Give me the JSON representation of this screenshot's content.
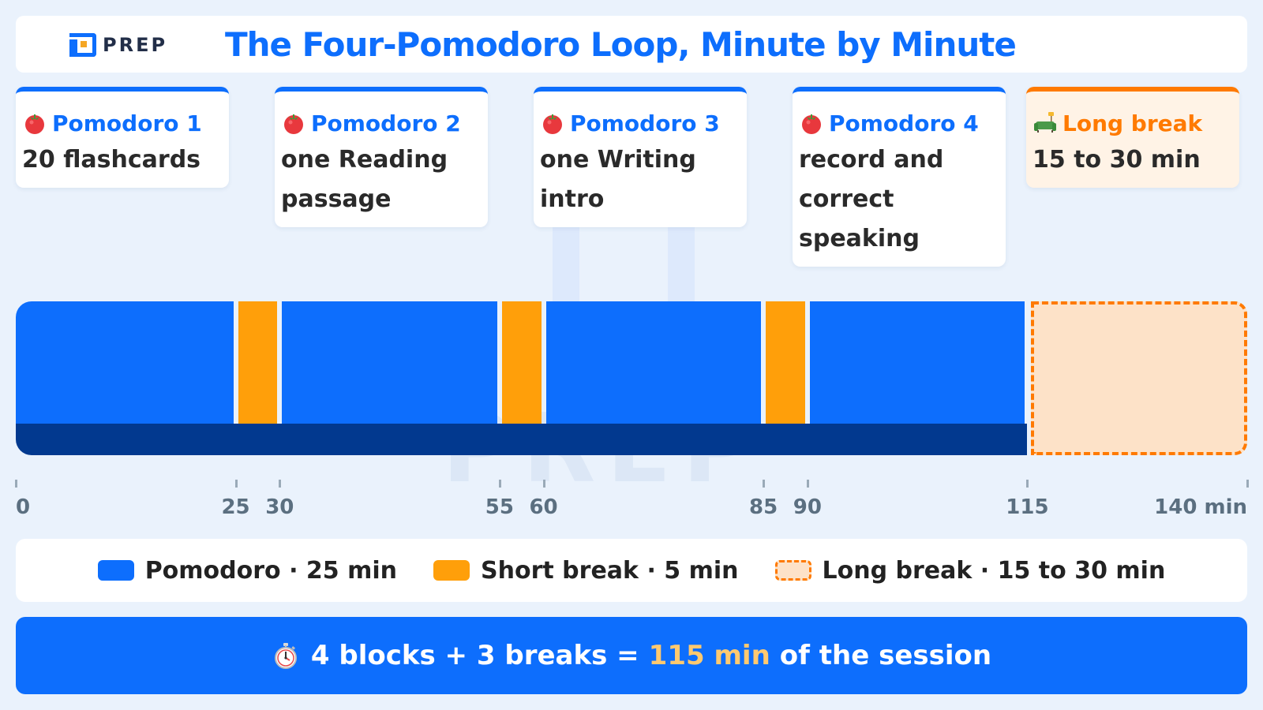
{
  "header": {
    "logo_text": "PREP",
    "title": "The Four-Pomodoro Loop, Minute by Minute"
  },
  "cards": [
    {
      "title": "Pomodoro 1",
      "desc": "20 flashcards",
      "icon": "tomato-icon"
    },
    {
      "title": "Pomodoro 2",
      "desc": "one Reading passage",
      "icon": "tomato-icon"
    },
    {
      "title": "Pomodoro 3",
      "desc": "one Writing intro",
      "icon": "tomato-icon"
    },
    {
      "title": "Pomodoro 4",
      "desc": "record and correct speaking",
      "icon": "tomato-icon"
    },
    {
      "title": "Long break",
      "desc": "15 to 30 min",
      "icon": "couch-lamp-icon"
    }
  ],
  "chart_data": {
    "type": "bar",
    "title": "The Four-Pomodoro Loop, Minute by Minute",
    "xlabel": "",
    "ylabel": "",
    "x_unit": "min",
    "xlim": [
      0,
      140
    ],
    "segments": [
      {
        "kind": "pomodoro",
        "start": 0,
        "end": 25,
        "task": "20 flashcards"
      },
      {
        "kind": "short_break",
        "start": 25,
        "end": 30
      },
      {
        "kind": "pomodoro",
        "start": 30,
        "end": 55,
        "task": "one Reading passage"
      },
      {
        "kind": "short_break",
        "start": 55,
        "end": 60
      },
      {
        "kind": "pomodoro",
        "start": 60,
        "end": 85,
        "task": "one Writing intro"
      },
      {
        "kind": "short_break",
        "start": 85,
        "end": 90
      },
      {
        "kind": "pomodoro",
        "start": 90,
        "end": 115,
        "task": "record and correct speaking"
      },
      {
        "kind": "long_break",
        "start": 115,
        "end": 140
      }
    ],
    "ticks": [
      {
        "value": 0,
        "label": "0"
      },
      {
        "value": 25,
        "label": "25"
      },
      {
        "value": 30,
        "label": "30"
      },
      {
        "value": 55,
        "label": "55"
      },
      {
        "value": 60,
        "label": "60"
      },
      {
        "value": 85,
        "label": "85"
      },
      {
        "value": 90,
        "label": "90"
      },
      {
        "value": 115,
        "label": "115"
      },
      {
        "value": 140,
        "label": "140 min"
      }
    ],
    "colors": {
      "pomodoro": "#0d6efd",
      "short_break": "#ff9f0a",
      "long_break_fill": "#fde2c8",
      "long_break_border": "#ff7a00",
      "baseline": "#02398f"
    }
  },
  "legend": [
    {
      "kind": "pomodoro",
      "label": "Pomodoro · 25 min"
    },
    {
      "kind": "short",
      "label": "Short break · 5 min"
    },
    {
      "kind": "long",
      "label": "Long break · 15 to 30 min"
    }
  ],
  "footer": {
    "icon": "stopwatch-icon",
    "before": "4 blocks + 3 breaks =",
    "highlight": "115 min",
    "after": "of the session"
  }
}
